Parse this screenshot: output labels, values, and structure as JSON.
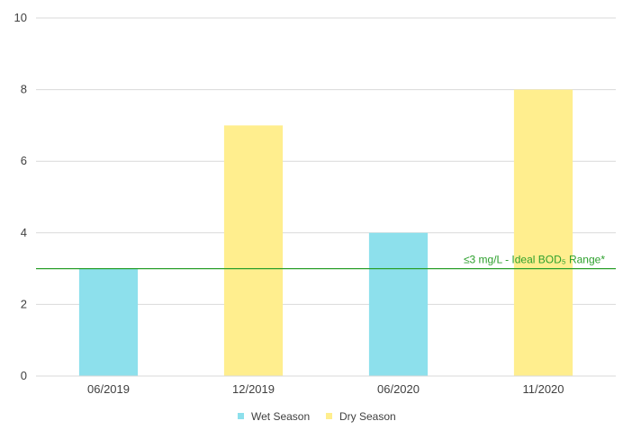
{
  "chart_data": {
    "type": "bar",
    "categories": [
      "06/2019",
      "12/2019",
      "06/2020",
      "11/2020"
    ],
    "values": [
      3,
      7,
      4,
      8
    ],
    "season": [
      "wet",
      "dry",
      "wet",
      "dry"
    ],
    "ylim": [
      0,
      10
    ],
    "yticks": [
      0,
      2,
      4,
      6,
      8,
      10
    ],
    "grid": true,
    "legend_position": "bottom",
    "legend": [
      {
        "key": "wet",
        "label": "Wet Season",
        "color": "#8DE0EC"
      },
      {
        "key": "dry",
        "label": "Dry Season",
        "color": "#FFEE8E"
      }
    ],
    "reference_line": {
      "value": 3,
      "label": "≤3 mg/L - Ideal BOD₅ Range*",
      "color": "#2ca02c"
    }
  }
}
